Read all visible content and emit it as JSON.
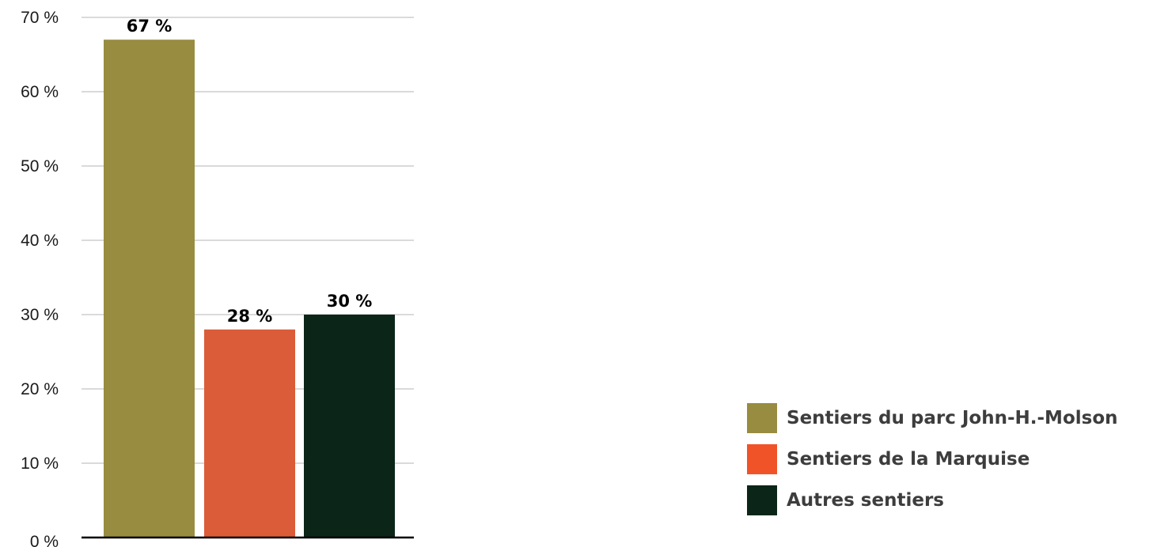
{
  "chart_data": {
    "type": "bar",
    "categories": [
      "Sentiers du parc John-H.-Molson",
      "Sentiers de la Marquise",
      "Autres sentiers"
    ],
    "values": [
      67,
      28,
      30
    ],
    "data_labels": [
      "67 %",
      "28 %",
      "30 %"
    ],
    "y_ticks": [
      0,
      10,
      20,
      30,
      40,
      50,
      60,
      70
    ],
    "y_tick_labels": [
      "0 %",
      "10 %",
      "20 %",
      "30 %",
      "40 %",
      "50 %",
      "60 %",
      "70 %"
    ],
    "ylim": [
      0,
      70
    ],
    "grid": true,
    "legend_position": "bottom-right",
    "colors": [
      "#978c40",
      "#db5c38",
      "#0b2619"
    ],
    "legend": [
      {
        "label": "Sentiers du parc John-H.-Molson",
        "color": "#978c40"
      },
      {
        "label": "Sentiers de la Marquise",
        "color": "#f05328"
      },
      {
        "label": "Autres sentiers",
        "color": "#0b2619"
      }
    ],
    "title": "",
    "xlabel": "",
    "ylabel": ""
  }
}
